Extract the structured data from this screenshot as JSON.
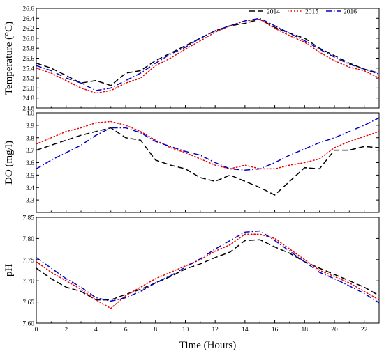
{
  "chart_data": [
    {
      "type": "line",
      "ylabel": "Temperature (°C)",
      "xlim": [
        0,
        23
      ],
      "ylim": [
        24.6,
        26.6
      ],
      "yticks": [
        24.6,
        24.8,
        25.0,
        25.2,
        25.4,
        25.6,
        25.8,
        26.0,
        26.2,
        26.4,
        26.6
      ],
      "legend": "top-right",
      "series": [
        {
          "name": "2014",
          "color": "#000000",
          "dash": "dash",
          "x": [
            0,
            1,
            2,
            3,
            4,
            5,
            6,
            7,
            8,
            9,
            10,
            11,
            12,
            13,
            14,
            15,
            16,
            17,
            18,
            19,
            20,
            21,
            22,
            23
          ],
          "y": [
            25.5,
            25.4,
            25.25,
            25.1,
            25.15,
            25.05,
            25.3,
            25.35,
            25.55,
            25.7,
            25.85,
            26.0,
            26.15,
            26.25,
            26.3,
            26.38,
            26.22,
            26.1,
            26.0,
            25.8,
            25.65,
            25.5,
            25.38,
            25.3
          ]
        },
        {
          "name": "2015",
          "color": "#ee0000",
          "dash": "dot",
          "x": [
            0,
            1,
            2,
            3,
            4,
            5,
            6,
            7,
            8,
            9,
            10,
            11,
            12,
            13,
            14,
            15,
            16,
            17,
            18,
            19,
            20,
            21,
            22,
            23
          ],
          "y": [
            25.4,
            25.3,
            25.15,
            25.0,
            24.9,
            24.95,
            25.1,
            25.2,
            25.45,
            25.6,
            25.78,
            25.95,
            26.12,
            26.25,
            26.35,
            26.38,
            26.2,
            26.05,
            25.92,
            25.72,
            25.55,
            25.42,
            25.35,
            25.2
          ]
        },
        {
          "name": "2016",
          "color": "#0000cc",
          "dash": "dashdot",
          "x": [
            0,
            1,
            2,
            3,
            4,
            5,
            6,
            7,
            8,
            9,
            10,
            11,
            12,
            13,
            14,
            15,
            16,
            17,
            18,
            19,
            20,
            21,
            22,
            23
          ],
          "y": [
            25.45,
            25.35,
            25.2,
            25.1,
            24.95,
            25.0,
            25.15,
            25.3,
            25.5,
            25.68,
            25.82,
            26.0,
            26.15,
            26.25,
            26.35,
            26.4,
            26.25,
            26.1,
            25.95,
            25.78,
            25.62,
            25.48,
            25.38,
            25.28
          ]
        }
      ]
    },
    {
      "type": "line",
      "ylabel": "DO (mg/l)",
      "xlim": [
        0,
        23
      ],
      "ylim": [
        3.2,
        4.0
      ],
      "yticks": [
        3.3,
        3.4,
        3.5,
        3.6,
        3.7,
        3.8,
        3.9,
        4.0
      ],
      "series": [
        {
          "name": "2014",
          "color": "#000000",
          "dash": "dash",
          "x": [
            0,
            1,
            2,
            3,
            4,
            5,
            6,
            7,
            8,
            9,
            10,
            11,
            12,
            13,
            14,
            15,
            16,
            17,
            18,
            19,
            20,
            21,
            22,
            23
          ],
          "y": [
            3.7,
            3.74,
            3.78,
            3.82,
            3.85,
            3.88,
            3.8,
            3.78,
            3.62,
            3.58,
            3.55,
            3.48,
            3.45,
            3.5,
            3.45,
            3.4,
            3.34,
            3.45,
            3.56,
            3.55,
            3.7,
            3.7,
            3.73,
            3.72
          ]
        },
        {
          "name": "2015",
          "color": "#ee0000",
          "dash": "dot",
          "x": [
            0,
            1,
            2,
            3,
            4,
            5,
            6,
            7,
            8,
            9,
            10,
            11,
            12,
            13,
            14,
            15,
            16,
            17,
            18,
            19,
            20,
            21,
            22,
            23
          ],
          "y": [
            3.75,
            3.8,
            3.85,
            3.88,
            3.92,
            3.93,
            3.9,
            3.85,
            3.78,
            3.72,
            3.68,
            3.63,
            3.58,
            3.55,
            3.58,
            3.55,
            3.55,
            3.58,
            3.6,
            3.63,
            3.72,
            3.77,
            3.81,
            3.85
          ]
        },
        {
          "name": "2016",
          "color": "#0000cc",
          "dash": "dashdot",
          "x": [
            0,
            1,
            2,
            3,
            4,
            5,
            6,
            7,
            8,
            9,
            10,
            11,
            12,
            13,
            14,
            15,
            16,
            17,
            18,
            19,
            20,
            21,
            22,
            23
          ],
          "y": [
            3.55,
            3.62,
            3.68,
            3.74,
            3.82,
            3.88,
            3.88,
            3.84,
            3.77,
            3.73,
            3.69,
            3.66,
            3.6,
            3.55,
            3.54,
            3.55,
            3.6,
            3.66,
            3.71,
            3.76,
            3.8,
            3.85,
            3.9,
            3.96
          ]
        }
      ]
    },
    {
      "type": "line",
      "ylabel": "pH",
      "xlabel": "Time (Hours)",
      "xlim": [
        0,
        23
      ],
      "xticks": [
        0,
        2,
        4,
        6,
        8,
        10,
        12,
        14,
        16,
        18,
        20,
        22
      ],
      "ylim": [
        7.6,
        7.85
      ],
      "yticks": [
        7.6,
        7.65,
        7.7,
        7.75,
        7.8,
        7.85
      ],
      "series": [
        {
          "name": "2014",
          "color": "#000000",
          "dash": "dash",
          "x": [
            0,
            1,
            2,
            3,
            4,
            5,
            6,
            7,
            8,
            9,
            10,
            11,
            12,
            13,
            14,
            15,
            16,
            17,
            18,
            19,
            20,
            21,
            22,
            23
          ],
          "y": [
            7.73,
            7.705,
            7.685,
            7.675,
            7.655,
            7.655,
            7.668,
            7.68,
            7.695,
            7.71,
            7.728,
            7.74,
            7.755,
            7.768,
            7.795,
            7.797,
            7.78,
            7.765,
            7.745,
            7.73,
            7.715,
            7.7,
            7.685,
            7.665
          ]
        },
        {
          "name": "2015",
          "color": "#ee0000",
          "dash": "dot",
          "x": [
            0,
            1,
            2,
            3,
            4,
            5,
            6,
            7,
            8,
            9,
            10,
            11,
            12,
            13,
            14,
            15,
            16,
            17,
            18,
            19,
            20,
            21,
            22,
            23
          ],
          "y": [
            7.745,
            7.72,
            7.7,
            7.68,
            7.655,
            7.635,
            7.665,
            7.685,
            7.705,
            7.72,
            7.735,
            7.75,
            7.77,
            7.785,
            7.81,
            7.81,
            7.8,
            7.775,
            7.75,
            7.725,
            7.71,
            7.695,
            7.675,
            7.655
          ]
        },
        {
          "name": "2016",
          "color": "#0000cc",
          "dash": "dashdot",
          "x": [
            0,
            1,
            2,
            3,
            4,
            5,
            6,
            7,
            8,
            9,
            10,
            11,
            12,
            13,
            14,
            15,
            16,
            17,
            18,
            19,
            20,
            21,
            22,
            23
          ],
          "y": [
            7.755,
            7.73,
            7.705,
            7.685,
            7.66,
            7.652,
            7.66,
            7.675,
            7.695,
            7.712,
            7.732,
            7.752,
            7.775,
            7.795,
            7.815,
            7.818,
            7.795,
            7.77,
            7.745,
            7.72,
            7.705,
            7.688,
            7.67,
            7.648
          ]
        }
      ]
    }
  ]
}
